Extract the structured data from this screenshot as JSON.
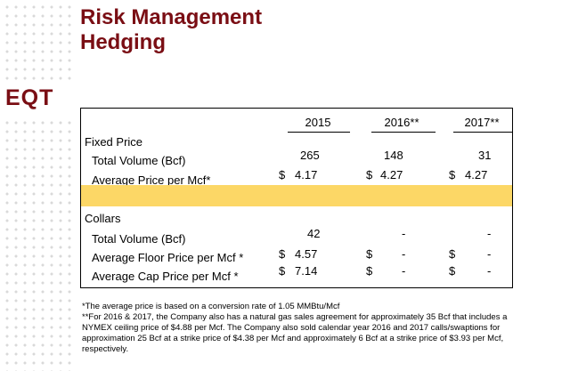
{
  "title": {
    "line1": "Risk Management",
    "line2": "Hedging"
  },
  "logo": "EQT",
  "columns": [
    "2015",
    "2016**",
    "2017**"
  ],
  "fixed_price": {
    "heading": "Fixed Price",
    "total_volume": {
      "label": "Total Volume (Bcf)",
      "values": [
        "265",
        "148",
        "31"
      ]
    },
    "average_price": {
      "label": "Average Price per Mcf*",
      "currency": "$",
      "values": [
        "4.17",
        "4.27",
        "4.27"
      ]
    }
  },
  "collars": {
    "heading": "Collars",
    "total_volume": {
      "label": "Total Volume (Bcf)",
      "values": [
        "42",
        "-",
        "-"
      ]
    },
    "floor_price": {
      "label": "Average Floor Price per Mcf *",
      "currency": "$",
      "values": [
        "4.57",
        "-",
        "-"
      ]
    },
    "cap_price": {
      "label": "Average Cap Price per Mcf *",
      "currency": "$",
      "values": [
        "7.14",
        "-",
        "-"
      ]
    }
  },
  "footnotes": [
    "*The average price is based on a conversion rate of 1.05 MMBtu/Mcf",
    "**For 2016 & 2017, the Company also has a natural gas sales agreement for approximately 35 Bcf that includes a",
    "NYMEX ceiling price of $4.88 per Mcf. The Company also sold calendar year 2016 and 2017 calls/swaptions for",
    "approximation 25 Bcf at a strike price of $4.38 per Mcf and approximately 6 Bcf at a strike price of $3.93 per Mcf,",
    "respectively."
  ],
  "colors": {
    "brand": "#7a0e14",
    "highlight": "#fcd766"
  }
}
